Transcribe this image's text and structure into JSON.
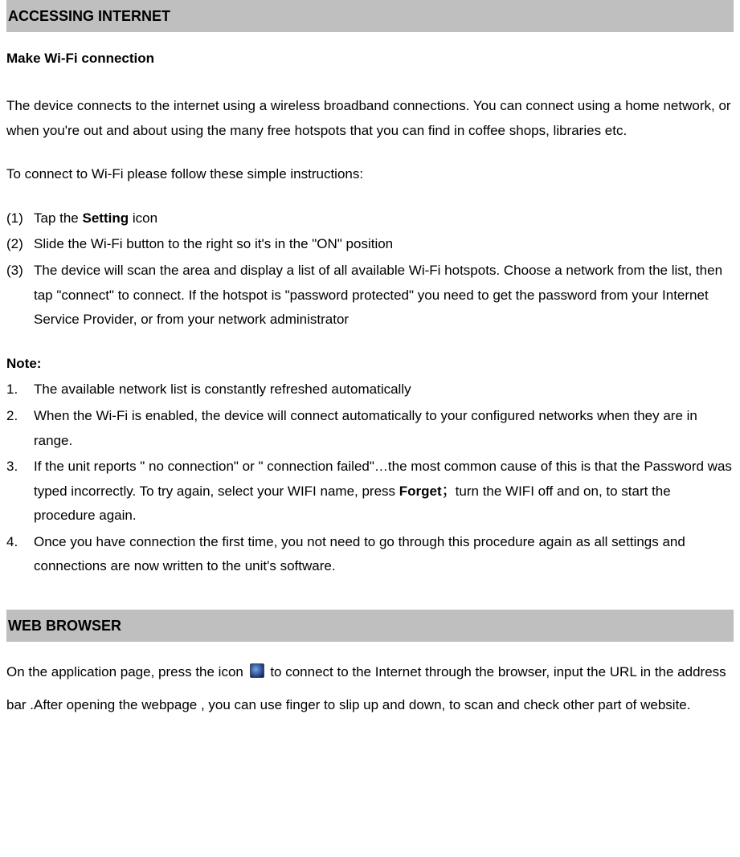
{
  "colors": {
    "header_bg": "#bfbfbf",
    "text": "#000000",
    "page_bg": "#ffffff"
  },
  "typography": {
    "body_fontsize_pt": 13,
    "header_fontsize_pt": 14,
    "line_height": 1.8,
    "font_family": "Arial"
  },
  "section1": {
    "title": "ACCESSING INTERNET",
    "subheading": "Make Wi-Fi connection",
    "intro": "The device connects to the internet using a wireless broadband connections. You can connect using a home network, or when you're out and about using the many free hotspots that you can find in coffee shops, libraries etc.",
    "instructions_lead": "To connect to Wi-Fi please follow these simple instructions:",
    "steps": [
      {
        "n": "(1)",
        "pre": "Tap the ",
        "bold": "Setting",
        "post": " icon"
      },
      {
        "n": "(2)",
        "text": "Slide the Wi-Fi button to the right so it's in the \"ON\" position"
      },
      {
        "n": "(3)",
        "text": "The device will scan the area and display a list of all available Wi-Fi hotspots. Choose a network from the list, then tap \"connect\" to connect. If the hotspot is \"password protected\" you need to get the password from your Internet Service Provider, or from your network administrator"
      }
    ],
    "note_label": "Note:",
    "notes": [
      {
        "n": "1.",
        "text": "The available network list is constantly refreshed automatically"
      },
      {
        "n": "2.",
        "text": "When the Wi-Fi is enabled, the device will connect automatically to your configured networks when they are in range."
      },
      {
        "n": "3.",
        "pre": "If the unit reports \" no connection\" or \" connection failed\"…the most common cause of this is that the Password was typed incorrectly. To try again, select your WIFI name, press ",
        "bold": "Forget",
        "post": "；turn the WIFI off and on, to start the procedure again."
      },
      {
        "n": "4.",
        "text": "Once you have connection the first time, you not need to go through this procedure again as all settings and connections are now written to the unit's software."
      }
    ]
  },
  "section2": {
    "title": "WEB BROWSER",
    "para_pre": "On the application page, press the icon ",
    "para_post": " to connect to the Internet through the browser, input the URL in the address bar .After opening the webpage , you can use finger to slip up and down, to scan and check other part of website.",
    "icon_name": "browser-globe-icon"
  }
}
